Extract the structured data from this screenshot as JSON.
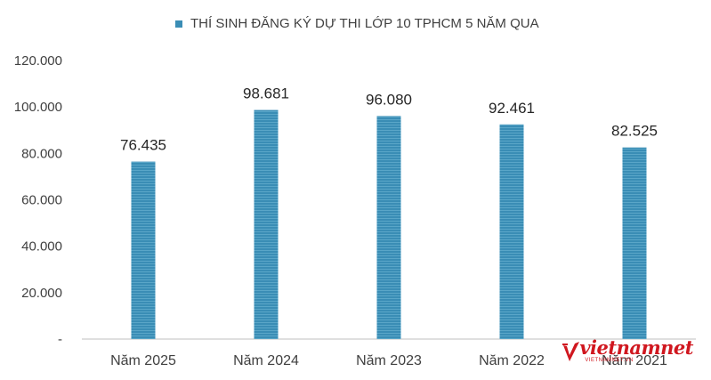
{
  "chart_data": {
    "type": "bar",
    "title": "THÍ SINH ĐĂNG KÝ DỰ THI LỚP 10 TPHCM 5 NĂM QUA",
    "legend": {
      "position": "top-center",
      "entries": [
        "THÍ SINH ĐĂNG KÝ DỰ THI LỚP 10 TPHCM 5 NĂM QUA"
      ]
    },
    "categories": [
      "Năm 2025",
      "Năm 2024",
      "Năm 2023",
      "Năm 2022",
      "Năm 2021"
    ],
    "values": [
      76435,
      98681,
      96080,
      92461,
      82525
    ],
    "data_labels": [
      "76.435",
      "98.681",
      "96.080",
      "92.461",
      "82.525"
    ],
    "ylim": [
      0,
      120000
    ],
    "y_ticks": [
      0,
      20000,
      40000,
      60000,
      80000,
      100000,
      120000
    ],
    "y_tick_labels": [
      "-",
      "20.000",
      "40.000",
      "60.000",
      "80.000",
      "100.000",
      "120.000"
    ],
    "xlabel": "",
    "ylabel": "",
    "grid": false,
    "series_color": "#3a8db5"
  },
  "watermark": {
    "brand": "vietnamnet",
    "domain": "VIETNAMNET.VN",
    "color": "#d0171f"
  }
}
